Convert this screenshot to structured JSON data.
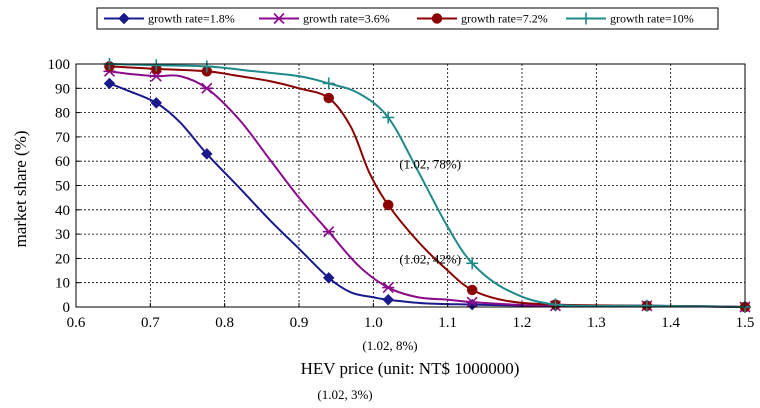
{
  "chart_data": {
    "type": "line",
    "xlabel": "HEV price (unit: NT$ 1000000)",
    "ylabel": "market share (%)",
    "xlim": [
      0.6,
      1.5
    ],
    "ylim": [
      0,
      100
    ],
    "xticks": [
      0.6,
      0.7,
      0.8,
      0.9,
      1.0,
      1.1,
      1.2,
      1.3,
      1.4,
      1.5
    ],
    "xtick_labels": [
      "0.6",
      "0.7",
      "0.8",
      "0.9",
      "1.0",
      "1.1",
      "1.2",
      "1.3",
      "1.4",
      "1.5"
    ],
    "yticks": [
      0,
      10,
      20,
      30,
      40,
      50,
      60,
      70,
      80,
      90,
      100
    ],
    "ytick_labels": [
      "0",
      "10",
      "20",
      "30",
      "40",
      "50",
      "60",
      "70",
      "80",
      "90",
      "100"
    ],
    "grid": true,
    "grid_style": "dashed",
    "legend_position": "top",
    "series": [
      {
        "name": "growth rate=1.8%",
        "color": "#1a1a8c",
        "marker": "diamond",
        "markers": [
          [
            0.645,
            92
          ],
          [
            0.708,
            84
          ],
          [
            0.776,
            63
          ],
          [
            0.94,
            12
          ],
          [
            1.02,
            3
          ],
          [
            1.133,
            1
          ],
          [
            1.245,
            0.5
          ],
          [
            1.368,
            0.5
          ],
          [
            1.5,
            0
          ]
        ],
        "curve": [
          [
            0.645,
            92
          ],
          [
            0.67,
            89
          ],
          [
            0.708,
            84
          ],
          [
            0.74,
            76
          ],
          [
            0.776,
            63
          ],
          [
            0.82,
            49
          ],
          [
            0.86,
            36
          ],
          [
            0.9,
            24
          ],
          [
            0.94,
            12
          ],
          [
            0.97,
            6
          ],
          [
            1.0,
            4
          ],
          [
            1.02,
            3
          ],
          [
            1.07,
            1.5
          ],
          [
            1.133,
            1
          ],
          [
            1.2,
            0.6
          ],
          [
            1.245,
            0.5
          ],
          [
            1.368,
            0.5
          ],
          [
            1.45,
            0.3
          ],
          [
            1.5,
            0
          ]
        ]
      },
      {
        "name": "growth rate=3.6%",
        "color": "#8b0a8b",
        "marker": "asterisk",
        "markers": [
          [
            0.645,
            97
          ],
          [
            0.708,
            95
          ],
          [
            0.776,
            90
          ],
          [
            0.94,
            31
          ],
          [
            1.02,
            8
          ],
          [
            1.133,
            2
          ],
          [
            1.245,
            0.5
          ],
          [
            1.368,
            0.5
          ],
          [
            1.5,
            0
          ]
        ],
        "curve": [
          [
            0.645,
            97
          ],
          [
            0.67,
            96
          ],
          [
            0.708,
            95
          ],
          [
            0.74,
            95
          ],
          [
            0.776,
            90
          ],
          [
            0.82,
            77
          ],
          [
            0.86,
            61
          ],
          [
            0.9,
            45
          ],
          [
            0.94,
            31
          ],
          [
            0.98,
            17
          ],
          [
            1.02,
            8
          ],
          [
            1.06,
            4
          ],
          [
            1.1,
            3
          ],
          [
            1.133,
            2
          ],
          [
            1.2,
            0.8
          ],
          [
            1.245,
            0.5
          ],
          [
            1.368,
            0.5
          ],
          [
            1.5,
            0
          ]
        ]
      },
      {
        "name": "growth rate=7.2%",
        "color": "#8b0000",
        "marker": "circle",
        "markers": [
          [
            0.645,
            99
          ],
          [
            0.708,
            98
          ],
          [
            0.776,
            97
          ],
          [
            0.94,
            86
          ],
          [
            1.02,
            42
          ],
          [
            1.133,
            7
          ],
          [
            1.245,
            1
          ],
          [
            1.368,
            0.5
          ],
          [
            1.5,
            0
          ]
        ],
        "curve": [
          [
            0.645,
            99
          ],
          [
            0.708,
            98
          ],
          [
            0.776,
            97
          ],
          [
            0.82,
            95
          ],
          [
            0.86,
            93
          ],
          [
            0.9,
            90
          ],
          [
            0.94,
            86
          ],
          [
            0.97,
            74
          ],
          [
            0.995,
            55
          ],
          [
            1.02,
            42
          ],
          [
            1.06,
            27
          ],
          [
            1.1,
            15
          ],
          [
            1.133,
            7
          ],
          [
            1.18,
            2.5
          ],
          [
            1.245,
            1
          ],
          [
            1.368,
            0.5
          ],
          [
            1.5,
            0
          ]
        ]
      },
      {
        "name": "growth rate=10%",
        "color": "#1f8a8a",
        "marker": "plus",
        "markers": [
          [
            0.645,
            100
          ],
          [
            0.708,
            99.5
          ],
          [
            0.776,
            99
          ],
          [
            0.94,
            92
          ],
          [
            1.02,
            78
          ],
          [
            1.133,
            18
          ],
          [
            1.245,
            1
          ],
          [
            1.368,
            0.5
          ],
          [
            1.5,
            0
          ]
        ],
        "curve": [
          [
            0.645,
            100
          ],
          [
            0.708,
            99.5
          ],
          [
            0.776,
            99
          ],
          [
            0.84,
            97
          ],
          [
            0.9,
            95
          ],
          [
            0.94,
            92
          ],
          [
            0.98,
            88
          ],
          [
            1.02,
            78
          ],
          [
            1.06,
            56
          ],
          [
            1.1,
            33
          ],
          [
            1.133,
            18
          ],
          [
            1.18,
            7
          ],
          [
            1.245,
            1
          ],
          [
            1.368,
            0.5
          ],
          [
            1.5,
            0
          ]
        ]
      }
    ],
    "annotations": [
      {
        "text": "(1.02, 78%)",
        "x": 1.035,
        "y": 57
      },
      {
        "text": "(1.02, 42%)",
        "x": 1.035,
        "y": 18
      }
    ],
    "below_plot_annotations": [
      "(1.02, 8%)",
      "(1.02, 3%)"
    ]
  }
}
